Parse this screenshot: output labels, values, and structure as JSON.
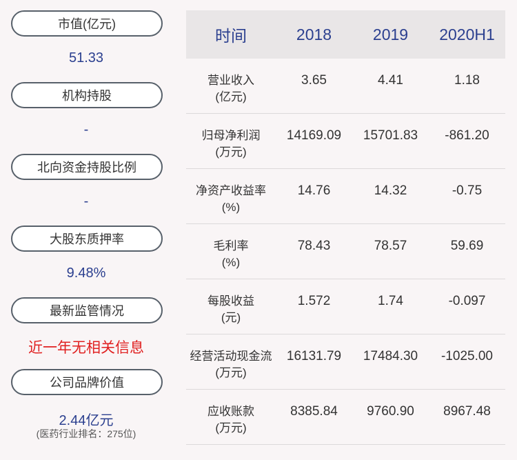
{
  "left": {
    "items": [
      {
        "label": "市值(亿元)",
        "value": "51.33"
      },
      {
        "label": "机构持股",
        "value": "-"
      },
      {
        "label": "北向资金持股比例",
        "value": "-"
      },
      {
        "label": "大股东质押率",
        "value": "9.48%"
      },
      {
        "label": "最新监管情况",
        "value": "近一年无相关信息"
      },
      {
        "label": "公司品牌价值",
        "value": "2.44亿元",
        "note": "(医药行业排名：275位)"
      }
    ]
  },
  "table": {
    "headers": [
      "时间",
      "2018",
      "2019",
      "2020H1"
    ],
    "rows": [
      {
        "label": "营业收入",
        "unit": "(亿元)",
        "values": [
          "3.65",
          "4.41",
          "1.18"
        ]
      },
      {
        "label": "归母净利润",
        "unit": "(万元)",
        "values": [
          "14169.09",
          "15701.83",
          "-861.20"
        ]
      },
      {
        "label": "净资产收益率",
        "unit": "(%)",
        "values": [
          "14.76",
          "14.32",
          "-0.75"
        ]
      },
      {
        "label": "毛利率",
        "unit": "(%)",
        "values": [
          "78.43",
          "78.57",
          "59.69"
        ]
      },
      {
        "label": "每股收益",
        "unit": "(元)",
        "values": [
          "1.572",
          "1.74",
          "-0.097"
        ]
      },
      {
        "label": "经营活动现金流",
        "unit": "(万元)",
        "values": [
          "16131.79",
          "17484.30",
          "-1025.00"
        ]
      },
      {
        "label": "应收账款",
        "unit": "(万元)",
        "values": [
          "8385.84",
          "9760.90",
          "8967.48"
        ]
      }
    ]
  }
}
